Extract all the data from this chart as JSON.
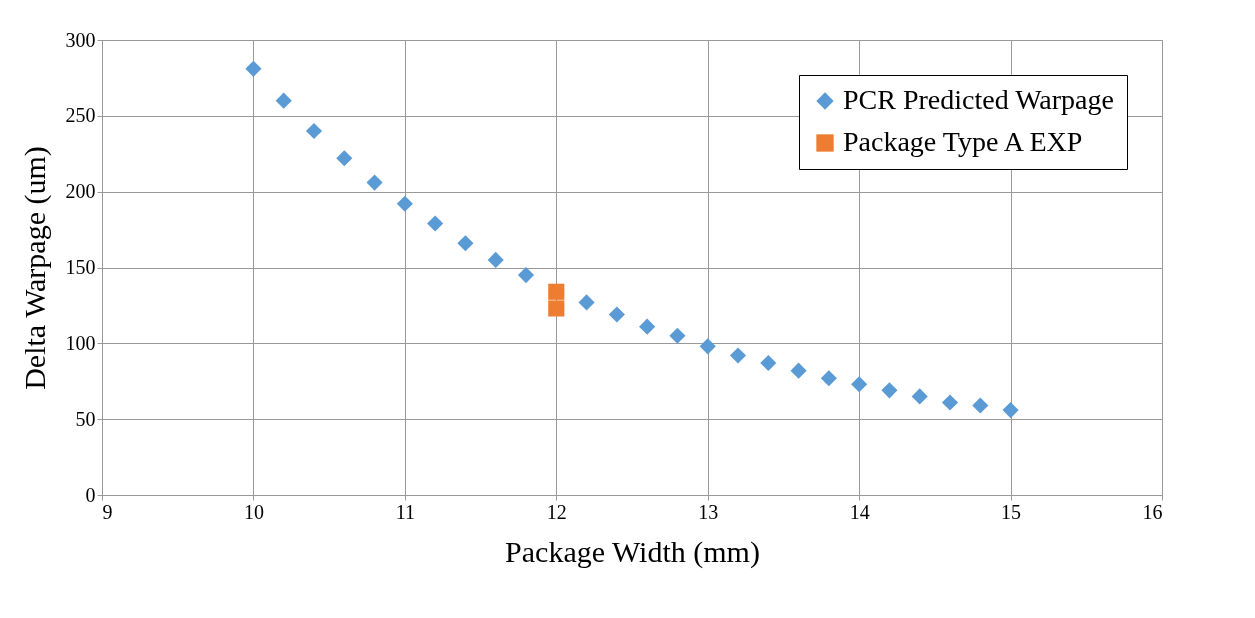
{
  "chart_data": {
    "type": "scatter",
    "xlabel": "Package Width (mm)",
    "ylabel": "Delta Warpage (um)",
    "xlim": [
      9,
      16
    ],
    "xticks": [
      9,
      10,
      11,
      12,
      13,
      14,
      15,
      16
    ],
    "ylim": [
      0,
      300
    ],
    "yticks": [
      0,
      50,
      100,
      150,
      200,
      250,
      300
    ],
    "grid": true,
    "legend": "top right",
    "series": [
      {
        "name": "PCR Predicted Warpage",
        "color": "#5b9bd5",
        "marker": "diamond",
        "x": [
          10,
          10.2,
          10.4,
          10.6,
          10.8,
          11,
          11.2,
          11.4,
          11.6,
          11.8,
          12.2,
          12.4,
          12.6,
          12.8,
          13,
          13.2,
          13.4,
          13.6,
          13.8,
          14,
          14.2,
          14.4,
          14.6,
          14.8,
          15
        ],
        "values": [
          281,
          260,
          240,
          222,
          206,
          192,
          179,
          166,
          155,
          145,
          127,
          119,
          111,
          105,
          98,
          92,
          87,
          82,
          77,
          73,
          69,
          65,
          61,
          59,
          56
        ]
      },
      {
        "name": "Package Type A EXP",
        "color": "#ed7d31",
        "marker": "square",
        "x": [
          12,
          12
        ],
        "values": [
          123,
          134
        ]
      }
    ]
  }
}
